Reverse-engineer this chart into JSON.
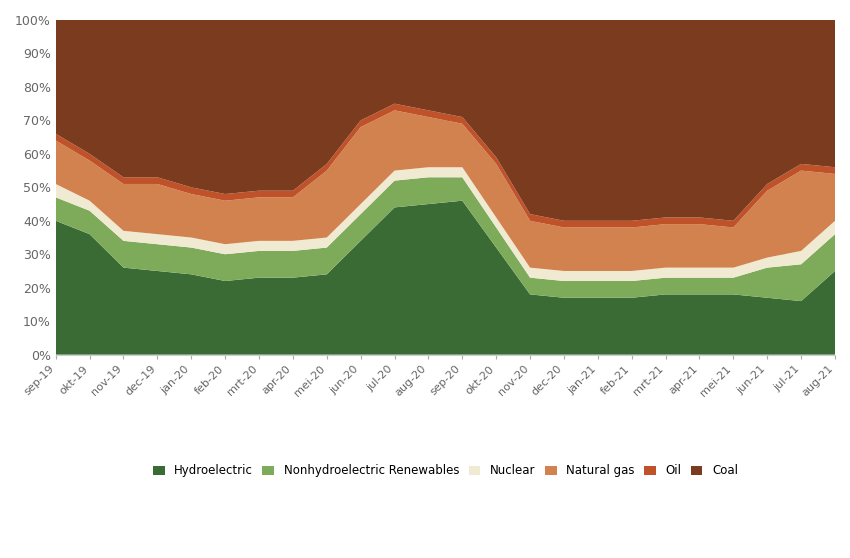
{
  "labels": [
    "sep-19",
    "okt-19",
    "nov-19",
    "dec-19",
    "jan-20",
    "feb-20",
    "mrt-20",
    "apr-20",
    "mei-20",
    "jun-20",
    "jul-20",
    "aug-20",
    "sep-20",
    "okt-20",
    "nov-20",
    "dec-20",
    "jan-21",
    "feb-21",
    "mrt-21",
    "apr-21",
    "mei-21",
    "jun-21",
    "jul-21",
    "aug-21"
  ],
  "Hydroelectric": [
    40,
    36,
    26,
    25,
    24,
    22,
    23,
    23,
    24,
    34,
    44,
    45,
    46,
    32,
    18,
    17,
    17,
    17,
    18,
    18,
    18,
    17,
    16,
    25
  ],
  "NonhydroelectricRenewables": [
    7,
    7,
    8,
    8,
    8,
    8,
    8,
    8,
    8,
    8,
    8,
    8,
    7,
    6,
    5,
    5,
    5,
    5,
    5,
    5,
    5,
    9,
    11,
    11
  ],
  "Nuclear": [
    4,
    3,
    3,
    3,
    3,
    3,
    3,
    3,
    3,
    3,
    3,
    3,
    3,
    3,
    3,
    3,
    3,
    3,
    3,
    3,
    3,
    3,
    4,
    4
  ],
  "NaturalGas": [
    13,
    12,
    14,
    15,
    13,
    13,
    13,
    13,
    20,
    23,
    18,
    15,
    13,
    16,
    14,
    13,
    13,
    13,
    13,
    13,
    12,
    20,
    24,
    14
  ],
  "Oil": [
    2,
    2,
    2,
    2,
    2,
    2,
    2,
    2,
    2,
    2,
    2,
    2,
    2,
    2,
    2,
    2,
    2,
    2,
    2,
    2,
    2,
    2,
    2,
    2
  ],
  "Coal": [
    34,
    40,
    47,
    47,
    50,
    52,
    51,
    51,
    43,
    30,
    25,
    27,
    29,
    41,
    58,
    60,
    60,
    60,
    59,
    59,
    60,
    49,
    43,
    44
  ],
  "colors": {
    "Hydroelectric": "#3a6b35",
    "NonhydroelectricRenewables": "#7dab5a",
    "Nuclear": "#f0ead2",
    "NaturalGas": "#d2824e",
    "Oil": "#c0522a",
    "Coal": "#7a3b1e"
  },
  "legend_labels": [
    "Hydroelectric",
    "Nonhydroelectric Renewables",
    "Nuclear",
    "Natural gas",
    "Oil",
    "Coal"
  ],
  "legend_colors": [
    "#3a6b35",
    "#7dab5a",
    "#f0ead2",
    "#d2824e",
    "#c0522a",
    "#7a3b1e"
  ],
  "background_color": "#ffffff",
  "ylim": [
    0,
    100
  ]
}
